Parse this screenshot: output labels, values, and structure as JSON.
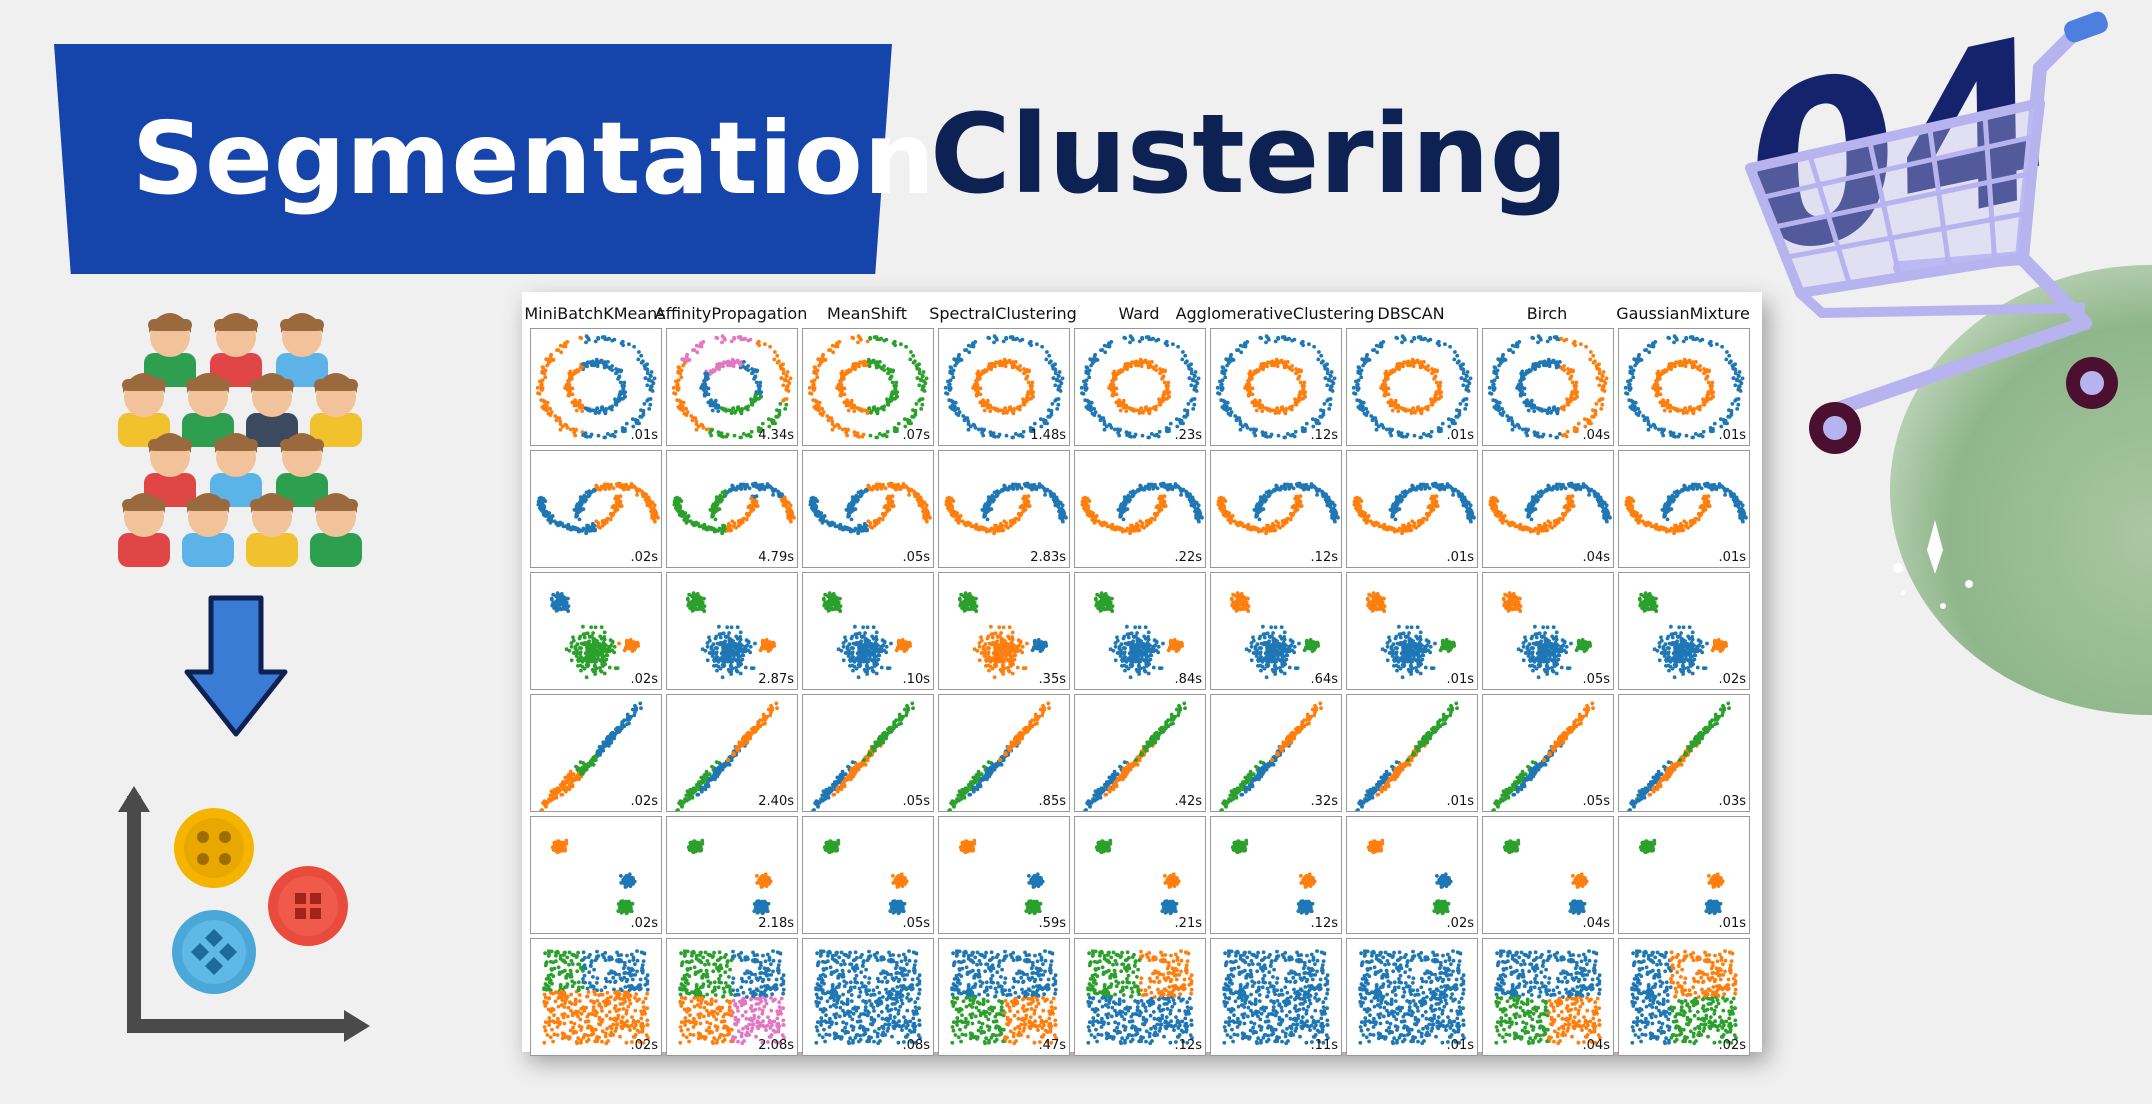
{
  "slide": {
    "title": "Segmentation",
    "subtitle": "Clustering",
    "badge_number": "04"
  },
  "colors": {
    "banner": "#1545aa",
    "subtitle": "#0e2153",
    "cluster_blue": "#1f77b4",
    "cluster_orange": "#ff7f0e",
    "cluster_green": "#2ca02c",
    "cluster_pink": "#e377c2"
  },
  "icons": [
    "people-crowd-icon",
    "down-arrow-icon",
    "scatter-axes-icon",
    "shopping-cart-icon",
    "sparkle-icon"
  ],
  "comparison": {
    "columns": [
      "MiniBatchKMeans",
      "AffinityPropagation",
      "MeanShift",
      "SpectralClustering",
      "Ward",
      "AgglomerativeClustering",
      "DBSCAN",
      "Birch",
      "GaussianMixture"
    ],
    "datasets": [
      "circles",
      "moons",
      "varied",
      "aniso",
      "blobs",
      "no_structure"
    ],
    "times": [
      [
        ".01s",
        "4.34s",
        ".07s",
        "1.48s",
        ".23s",
        ".12s",
        ".01s",
        ".04s",
        ".01s"
      ],
      [
        ".02s",
        "4.79s",
        ".05s",
        "2.83s",
        ".22s",
        ".12s",
        ".01s",
        ".04s",
        ".01s"
      ],
      [
        ".02s",
        "2.87s",
        ".10s",
        ".35s",
        ".84s",
        ".64s",
        ".01s",
        ".05s",
        ".02s"
      ],
      [
        ".02s",
        "2.40s",
        ".05s",
        ".85s",
        ".42s",
        ".32s",
        ".01s",
        ".05s",
        ".03s"
      ],
      [
        ".02s",
        "2.18s",
        ".05s",
        ".59s",
        ".21s",
        ".12s",
        ".02s",
        ".04s",
        ".01s"
      ],
      [
        ".02s",
        "2.08s",
        ".08s",
        ".47s",
        ".12s",
        ".11s",
        ".01s",
        ".04s",
        ".02s"
      ]
    ]
  }
}
